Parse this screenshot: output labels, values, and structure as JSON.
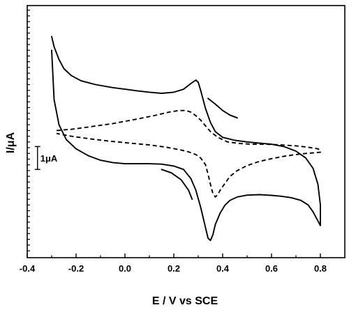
{
  "chart_data": {
    "type": "line",
    "title": "",
    "xlabel": "E / V vs SCE",
    "ylabel": "I/μA",
    "xlim": [
      -0.4,
      0.9
    ],
    "ylim": [
      -5.3,
      5.7
    ],
    "x_ticks": [
      -0.4,
      -0.2,
      0.0,
      0.2,
      0.4,
      0.6,
      0.8
    ],
    "x_tick_labels": [
      "-0.4",
      "-0.2",
      "0.0",
      "0.2",
      "0.4",
      "0.6",
      "0.8"
    ],
    "y_minor_step": 0.25,
    "grid": false,
    "legend": "none",
    "scale_bar": {
      "label": "1μA",
      "value": 1,
      "x": -0.395,
      "y_low": -1.45
    },
    "series": [
      {
        "style": "solid",
        "x": [
          -0.3,
          -0.29,
          -0.27,
          -0.25,
          -0.22,
          -0.18,
          -0.12,
          -0.05,
          0.0,
          0.05,
          0.1,
          0.15,
          0.2,
          0.24,
          0.27,
          0.29,
          0.3,
          0.31,
          0.33,
          0.35,
          0.37,
          0.4,
          0.45,
          0.5,
          0.55,
          0.6,
          0.65,
          0.7,
          0.74,
          0.77,
          0.79,
          0.8,
          0.8,
          0.79,
          0.77,
          0.75,
          0.72,
          0.68,
          0.64,
          0.6,
          0.55,
          0.5,
          0.46,
          0.43,
          0.41,
          0.39,
          0.37,
          0.36,
          0.35,
          0.34,
          0.33,
          0.31,
          0.29,
          0.27,
          0.24,
          0.2,
          0.15,
          0.1,
          0.05,
          0.0,
          -0.05,
          -0.1,
          -0.15,
          -0.2,
          -0.24,
          -0.27,
          -0.29,
          -0.3
        ],
        "y": [
          4.35,
          3.9,
          3.35,
          2.95,
          2.65,
          2.42,
          2.25,
          2.12,
          2.05,
          1.98,
          1.92,
          1.87,
          1.92,
          2.05,
          2.3,
          2.45,
          2.35,
          2.0,
          1.2,
          0.6,
          0.2,
          -0.05,
          -0.18,
          -0.25,
          -0.3,
          -0.35,
          -0.45,
          -0.65,
          -0.95,
          -1.4,
          -2.1,
          -3.0,
          -3.9,
          -3.7,
          -3.3,
          -3.0,
          -2.8,
          -2.68,
          -2.62,
          -2.58,
          -2.55,
          -2.57,
          -2.65,
          -2.8,
          -3.0,
          -3.35,
          -3.85,
          -4.3,
          -4.55,
          -4.45,
          -4.0,
          -3.1,
          -2.35,
          -1.85,
          -1.45,
          -1.3,
          -1.22,
          -1.2,
          -1.2,
          -1.2,
          -1.15,
          -1.05,
          -0.85,
          -0.55,
          -0.15,
          0.5,
          1.6,
          3.75
        ]
      },
      {
        "style": "dashed",
        "x": [
          -0.28,
          -0.22,
          -0.15,
          -0.05,
          0.05,
          0.12,
          0.18,
          0.22,
          0.25,
          0.27,
          0.29,
          0.31,
          0.33,
          0.35,
          0.38,
          0.42,
          0.47,
          0.52,
          0.58,
          0.64,
          0.7,
          0.75,
          0.79,
          0.8,
          0.8,
          0.78,
          0.74,
          0.7,
          0.65,
          0.6,
          0.55,
          0.5,
          0.46,
          0.43,
          0.41,
          0.39,
          0.38,
          0.37,
          0.36,
          0.35,
          0.34,
          0.33,
          0.31,
          0.29,
          0.26,
          0.22,
          0.17,
          0.1,
          0.02,
          -0.06,
          -0.14,
          -0.22,
          -0.28
        ],
        "y": [
          0.25,
          0.3,
          0.4,
          0.55,
          0.75,
          0.9,
          1.05,
          1.12,
          1.12,
          1.05,
          0.9,
          0.7,
          0.45,
          0.2,
          -0.05,
          -0.25,
          -0.32,
          -0.35,
          -0.35,
          -0.38,
          -0.42,
          -0.48,
          -0.55,
          -0.62,
          -0.7,
          -0.72,
          -0.75,
          -0.8,
          -0.88,
          -0.98,
          -1.1,
          -1.28,
          -1.5,
          -1.75,
          -2.05,
          -2.35,
          -2.55,
          -2.65,
          -2.5,
          -2.1,
          -1.65,
          -1.25,
          -0.95,
          -0.8,
          -0.68,
          -0.58,
          -0.48,
          -0.38,
          -0.3,
          -0.22,
          -0.12,
          0.0,
          0.12
        ]
      },
      {
        "style": "solid",
        "x": [
          0.15,
          0.19,
          0.23,
          0.26,
          0.275
        ],
        "y": [
          -1.45,
          -1.6,
          -1.9,
          -2.35,
          -2.75
        ]
      },
      {
        "style": "solid",
        "x": [
          0.34,
          0.37,
          0.4,
          0.43,
          0.46
        ],
        "y": [
          1.65,
          1.4,
          1.12,
          0.92,
          0.8
        ]
      }
    ]
  }
}
